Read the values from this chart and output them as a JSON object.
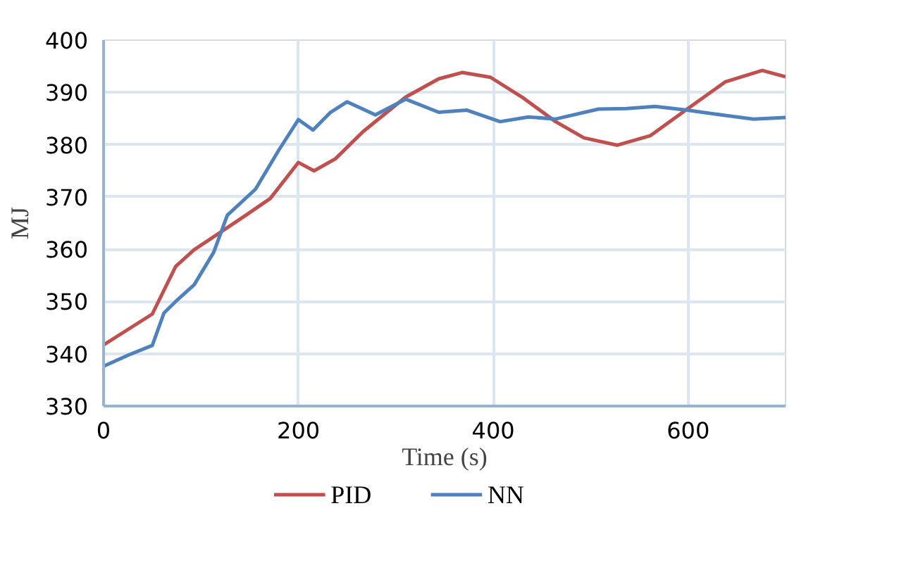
{
  "chart_data": {
    "type": "line",
    "xlabel": "Time (s)",
    "ylabel": "MJ",
    "xlim": [
      0,
      700
    ],
    "xticks": [
      0,
      200,
      400,
      600
    ],
    "ylim": [
      330,
      400
    ],
    "yticks": [
      330,
      340,
      350,
      360,
      370,
      380,
      390,
      400
    ],
    "grid": true,
    "legend": "bottom",
    "marker": "none",
    "line_style": "solid",
    "series": [
      {
        "name": "PID",
        "color": "#c0504d",
        "x": [
          0,
          50,
          74,
          93,
          118,
          146,
          171,
          200,
          216,
          238,
          267,
          310,
          344,
          368,
          397,
          431,
          464,
          493,
          527,
          561,
          599,
          638,
          676,
          700
        ],
        "values": [
          341.7,
          347.6,
          356.7,
          359.9,
          363,
          366.5,
          369.7,
          376.6,
          375,
          377.3,
          382.6,
          389.1,
          392.6,
          393.8,
          392.9,
          388.9,
          384.4,
          381.3,
          379.9,
          381.7,
          386.8,
          392,
          394.2,
          393
        ]
      },
      {
        "name": "NN",
        "color": "#4f81bd",
        "x": [
          0,
          26,
          50,
          62,
          74,
          93,
          113,
          127,
          156,
          180,
          200,
          215,
          233,
          250,
          279,
          310,
          344,
          373,
          407,
          436,
          464,
          508,
          537,
          566,
          599,
          638,
          667,
          700
        ],
        "values": [
          337.6,
          339.8,
          341.6,
          347.8,
          350,
          353.2,
          359.4,
          366.5,
          371.5,
          379,
          384.8,
          382.8,
          386.2,
          388.2,
          385.7,
          388.7,
          386.2,
          386.6,
          384.4,
          385.3,
          384.9,
          386.8,
          386.9,
          387.3,
          386.6,
          385.6,
          384.9,
          385.2
        ]
      }
    ]
  }
}
